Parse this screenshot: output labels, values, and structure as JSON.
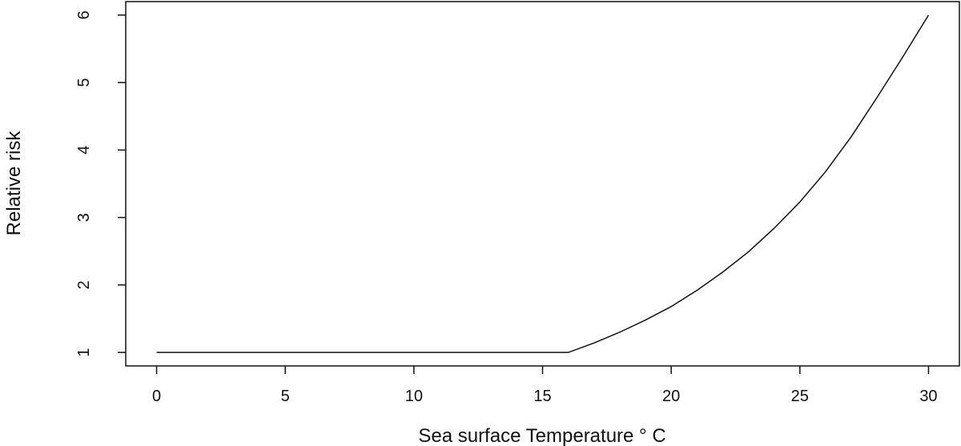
{
  "chart_data": {
    "type": "line",
    "title": "",
    "xlabel": "Sea surface Temperature ° C",
    "ylabel": "Relative risk",
    "xlim": [
      -1.2,
      31.2
    ],
    "ylim": [
      0.8,
      6.2
    ],
    "x_ticks": [
      0,
      5,
      10,
      15,
      20,
      25,
      30
    ],
    "y_ticks": [
      1,
      2,
      3,
      4,
      5,
      6
    ],
    "grid": false,
    "legend": "none",
    "line_color": "#111111",
    "series": [
      {
        "x": [
          0,
          5,
          10,
          15,
          16,
          17,
          18,
          19,
          20,
          21,
          22,
          23,
          24,
          25,
          26,
          27,
          28,
          29,
          30
        ],
        "y": [
          1,
          1,
          1,
          1,
          1,
          1.14,
          1.3,
          1.48,
          1.68,
          1.92,
          2.19,
          2.49,
          2.84,
          3.23,
          3.68,
          4.2,
          4.78,
          5.38,
          6.0
        ]
      }
    ]
  }
}
